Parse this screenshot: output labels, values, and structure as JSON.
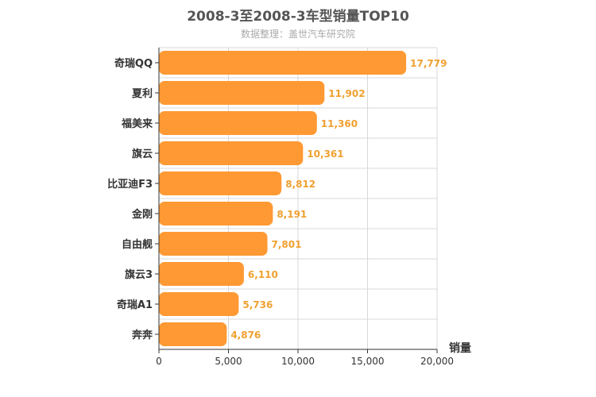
{
  "chart_data": {
    "type": "bar",
    "orientation": "horizontal",
    "title": "2008-3至2008-3车型销量TOP10",
    "subtitle": "数据整理：盖世汽车研究院",
    "xlabel": "销量",
    "categories": [
      "奇瑞QQ",
      "夏利",
      "福美来",
      "旗云",
      "比亚迪F3",
      "金刚",
      "自由舰",
      "旗云3",
      "奇瑞A1",
      "奔奔"
    ],
    "values": [
      17779,
      11902,
      11360,
      10361,
      8812,
      8191,
      7801,
      6110,
      5736,
      4876
    ],
    "value_labels": [
      "17,779",
      "11,902",
      "11,360",
      "10,361",
      "8,812",
      "8,191",
      "7,801",
      "6,110",
      "5,736",
      "4,876"
    ],
    "xlim": [
      0,
      20000
    ],
    "xticks": [
      0,
      5000,
      10000,
      15000,
      20000
    ],
    "xtick_labels": [
      "0",
      "5,000",
      "10,000",
      "15,000",
      "20,000"
    ],
    "grid": true,
    "colors": {
      "bar": "#ff9933",
      "value_label": "#f0a030",
      "grid": "#d8d8d8",
      "axis": "#333333"
    }
  }
}
